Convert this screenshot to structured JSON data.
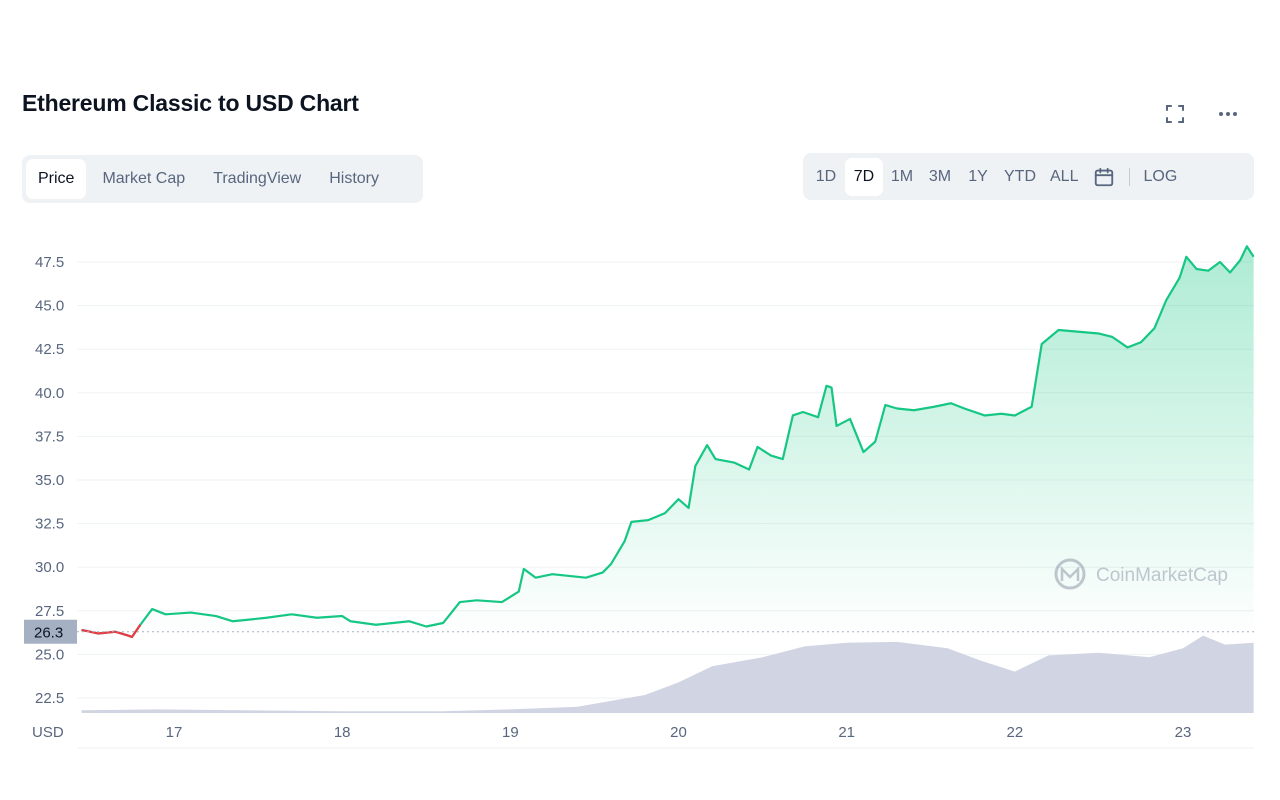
{
  "header": {
    "title": "Ethereum Classic to USD Chart"
  },
  "top_icons": [
    "fullscreen-icon",
    "more-options-icon"
  ],
  "tabs": [
    {
      "label": "Price",
      "active": true
    },
    {
      "label": "Market Cap",
      "active": false
    },
    {
      "label": "TradingView",
      "active": false
    },
    {
      "label": "History",
      "active": false
    }
  ],
  "ranges": {
    "items": [
      {
        "label": "1D",
        "active": false
      },
      {
        "label": "7D",
        "active": true
      },
      {
        "label": "1M",
        "active": false
      },
      {
        "label": "3M",
        "active": false
      },
      {
        "label": "1Y",
        "active": false
      },
      {
        "label": "YTD",
        "active": false
      },
      {
        "label": "ALL",
        "active": false
      }
    ],
    "calendar_icon": "calendar-icon",
    "log_label": "LOG"
  },
  "watermark": {
    "text": "CoinMarketCap",
    "icon": "coinmarketcap-logo-icon"
  },
  "colors": {
    "up": "#16c784",
    "down": "#ea3943",
    "volume": "#d1d5e3",
    "text_secondary": "#58667e",
    "grid": "#eff2f5",
    "price_label_bg": "#a6b0c3"
  },
  "chart_data": {
    "type": "line",
    "ylabel": "USD",
    "ylim": [
      21.5,
      48.5
    ],
    "yticks": [
      22.5,
      25.0,
      27.5,
      30.0,
      32.5,
      35.0,
      37.5,
      40.0,
      42.5,
      45.0,
      47.5
    ],
    "ytick_labels": [
      "22.5",
      "25.0",
      "27.5",
      "30.0",
      "32.5",
      "35.0",
      "37.5",
      "40.0",
      "42.5",
      "45.0",
      "47.5"
    ],
    "xlim": [
      16.45,
      23.42
    ],
    "xticks": [
      17,
      18,
      19,
      20,
      21,
      22,
      23
    ],
    "xtick_labels": [
      "17",
      "18",
      "19",
      "20",
      "21",
      "22",
      "23"
    ],
    "reference_price": 26.3,
    "reference_label": "26.3",
    "grid": true,
    "series": [
      {
        "values": [
          [
            16.45,
            26.4
          ],
          [
            16.55,
            26.2
          ],
          [
            16.65,
            26.3
          ],
          [
            16.72,
            26.1
          ],
          [
            16.75,
            26.0
          ],
          [
            16.8,
            26.7
          ],
          [
            16.87,
            27.6
          ],
          [
            16.95,
            27.3
          ],
          [
            17.1,
            27.4
          ],
          [
            17.25,
            27.2
          ],
          [
            17.35,
            26.9
          ],
          [
            17.55,
            27.1
          ],
          [
            17.7,
            27.3
          ],
          [
            17.85,
            27.1
          ],
          [
            18.0,
            27.2
          ],
          [
            18.05,
            26.9
          ],
          [
            18.2,
            26.7
          ],
          [
            18.4,
            26.9
          ],
          [
            18.5,
            26.6
          ],
          [
            18.6,
            26.8
          ],
          [
            18.7,
            28.0
          ],
          [
            18.8,
            28.1
          ],
          [
            18.95,
            28.0
          ],
          [
            19.05,
            28.6
          ],
          [
            19.08,
            29.9
          ],
          [
            19.15,
            29.4
          ],
          [
            19.25,
            29.6
          ],
          [
            19.45,
            29.4
          ],
          [
            19.55,
            29.7
          ],
          [
            19.6,
            30.2
          ],
          [
            19.68,
            31.5
          ],
          [
            19.72,
            32.6
          ],
          [
            19.82,
            32.7
          ],
          [
            19.92,
            33.1
          ],
          [
            20.0,
            33.9
          ],
          [
            20.06,
            33.4
          ],
          [
            20.1,
            35.8
          ],
          [
            20.17,
            37.0
          ],
          [
            20.22,
            36.2
          ],
          [
            20.33,
            36.0
          ],
          [
            20.42,
            35.6
          ],
          [
            20.47,
            36.9
          ],
          [
            20.55,
            36.4
          ],
          [
            20.62,
            36.2
          ],
          [
            20.68,
            38.7
          ],
          [
            20.74,
            38.9
          ],
          [
            20.83,
            38.6
          ],
          [
            20.88,
            40.4
          ],
          [
            20.91,
            40.3
          ],
          [
            20.94,
            38.1
          ],
          [
            20.98,
            38.3
          ],
          [
            21.02,
            38.5
          ],
          [
            21.1,
            36.6
          ],
          [
            21.17,
            37.2
          ],
          [
            21.23,
            39.3
          ],
          [
            21.3,
            39.1
          ],
          [
            21.4,
            39.0
          ],
          [
            21.52,
            39.2
          ],
          [
            21.62,
            39.4
          ],
          [
            21.7,
            39.1
          ],
          [
            21.82,
            38.7
          ],
          [
            21.92,
            38.8
          ],
          [
            22.0,
            38.7
          ],
          [
            22.1,
            39.2
          ],
          [
            22.16,
            42.8
          ],
          [
            22.26,
            43.6
          ],
          [
            22.38,
            43.5
          ],
          [
            22.5,
            43.4
          ],
          [
            22.58,
            43.2
          ],
          [
            22.67,
            42.6
          ],
          [
            22.75,
            42.9
          ],
          [
            22.83,
            43.7
          ],
          [
            22.9,
            45.3
          ],
          [
            22.98,
            46.6
          ],
          [
            23.02,
            47.8
          ],
          [
            23.08,
            47.1
          ],
          [
            23.15,
            47.0
          ],
          [
            23.22,
            47.5
          ],
          [
            23.28,
            46.9
          ],
          [
            23.34,
            47.6
          ],
          [
            23.38,
            48.4
          ],
          [
            23.42,
            47.8
          ]
        ]
      }
    ],
    "volume": {
      "values": [
        [
          16.45,
          0.03
        ],
        [
          16.9,
          0.04
        ],
        [
          17.4,
          0.03
        ],
        [
          18.0,
          0.02
        ],
        [
          18.6,
          0.02
        ],
        [
          19.0,
          0.04
        ],
        [
          19.4,
          0.07
        ],
        [
          19.8,
          0.2
        ],
        [
          20.0,
          0.34
        ],
        [
          20.2,
          0.52
        ],
        [
          20.5,
          0.62
        ],
        [
          20.75,
          0.74
        ],
        [
          21.0,
          0.78
        ],
        [
          21.3,
          0.79
        ],
        [
          21.6,
          0.72
        ],
        [
          21.8,
          0.58
        ],
        [
          22.0,
          0.46
        ],
        [
          22.2,
          0.64
        ],
        [
          22.5,
          0.67
        ],
        [
          22.8,
          0.62
        ],
        [
          23.0,
          0.72
        ],
        [
          23.12,
          0.86
        ],
        [
          23.25,
          0.76
        ],
        [
          23.42,
          0.78
        ]
      ]
    }
  }
}
